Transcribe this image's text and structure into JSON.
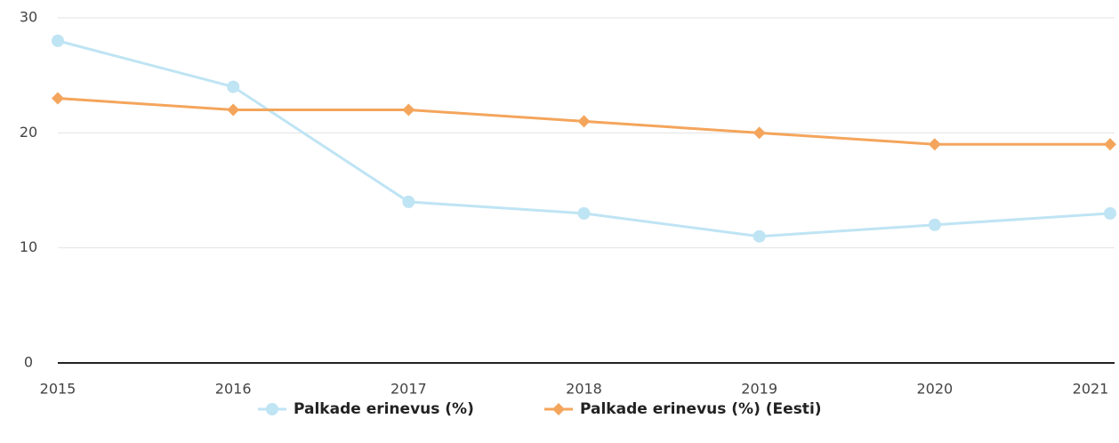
{
  "chart_data": {
    "type": "line",
    "categories": [
      "2015",
      "2016",
      "2017",
      "2018",
      "2019",
      "2020",
      "2021"
    ],
    "series": [
      {
        "name": "Palkade erinevus (%)",
        "color": "#bfe4f4",
        "marker": "circle",
        "values": [
          28,
          24,
          14,
          13,
          11,
          12,
          13
        ]
      },
      {
        "name": "Palkade erinevus (%) (Eesti)",
        "color": "#f4a55c",
        "marker": "diamond",
        "values": [
          23,
          22,
          22,
          21,
          20,
          19,
          19
        ]
      }
    ],
    "ylim": [
      0,
      30
    ],
    "yticks": [
      0,
      10,
      20,
      30
    ],
    "grid": true,
    "legend": "bottom"
  }
}
